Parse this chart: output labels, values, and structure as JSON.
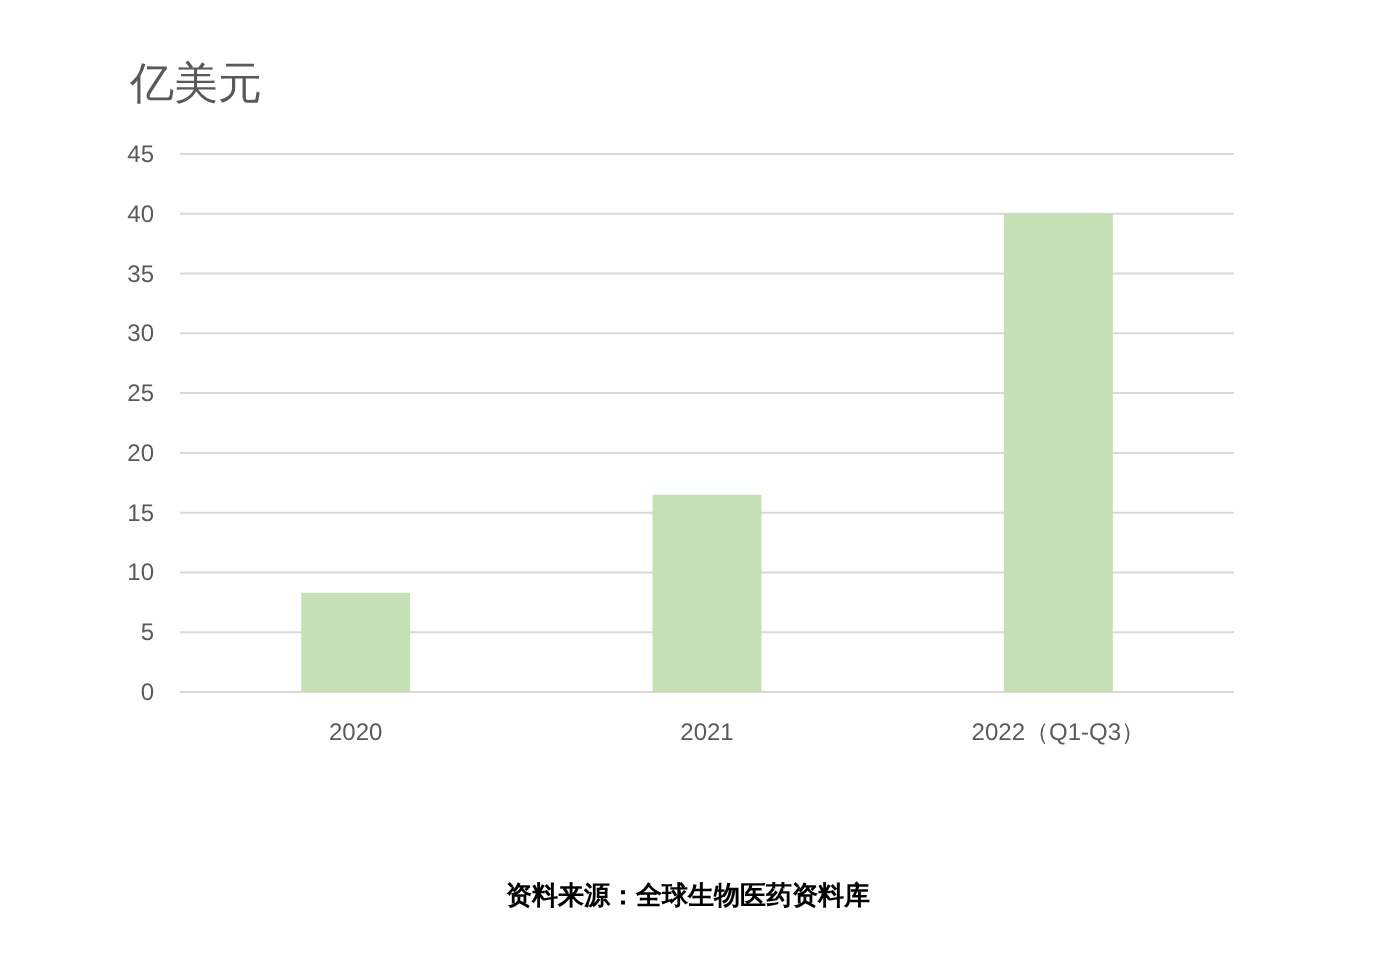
{
  "chart_data": {
    "type": "bar",
    "title": "亿美元",
    "categories": [
      "2020",
      "2021",
      "2022（Q1-Q3）"
    ],
    "values": [
      8.3,
      16.5,
      40
    ],
    "color": "#c5e0b4",
    "ylim": [
      0,
      45
    ],
    "yticks": [
      0,
      5,
      10,
      15,
      20,
      25,
      30,
      35,
      40,
      45
    ],
    "grid": "y",
    "annotations": [
      "资料来源：全球生物医药资料库"
    ]
  }
}
